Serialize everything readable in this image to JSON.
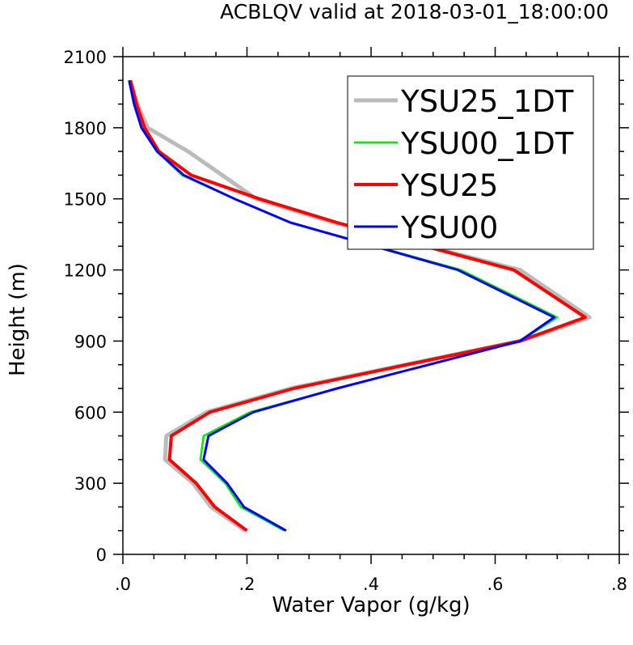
{
  "chart_data": {
    "type": "line",
    "title": "ACBLQV valid at 2018-03-01_18:00:00",
    "xlabel": "Water Vapor (g/kg)",
    "ylabel": "Height (m)",
    "xlim": [
      0,
      0.8
    ],
    "ylim": [
      0,
      2100
    ],
    "xticks": [
      ".0",
      ".2",
      ".4",
      ".6",
      ".8"
    ],
    "yticks": [
      "0",
      "300",
      "600",
      "900",
      "1200",
      "1500",
      "1800",
      "2100"
    ],
    "legend_position": "top-right",
    "series": [
      {
        "name": "YSU25_1DT",
        "color": "#bbbbbb",
        "points": [
          [
            0.197,
            100
          ],
          [
            0.142,
            200
          ],
          [
            0.113,
            300
          ],
          [
            0.068,
            400
          ],
          [
            0.07,
            500
          ],
          [
            0.135,
            600
          ],
          [
            0.27,
            700
          ],
          [
            0.64,
            900
          ],
          [
            0.752,
            1000
          ],
          [
            0.64,
            1200
          ],
          [
            0.34,
            1400
          ],
          [
            0.215,
            1500
          ],
          [
            0.105,
            1700
          ],
          [
            0.04,
            1800
          ],
          [
            0.023,
            1900
          ],
          [
            0.012,
            2000
          ]
        ]
      },
      {
        "name": "YSU00_1DT",
        "color": "#00ee00",
        "points": [
          [
            0.26,
            100
          ],
          [
            0.19,
            200
          ],
          [
            0.165,
            300
          ],
          [
            0.125,
            400
          ],
          [
            0.13,
            500
          ],
          [
            0.205,
            600
          ],
          [
            0.345,
            700
          ],
          [
            0.64,
            900
          ],
          [
            0.7,
            1000
          ],
          [
            0.545,
            1200
          ],
          [
            0.27,
            1400
          ],
          [
            0.18,
            1500
          ],
          [
            0.095,
            1600
          ],
          [
            0.055,
            1700
          ],
          [
            0.03,
            1800
          ],
          [
            0.018,
            1900
          ],
          [
            0.01,
            2000
          ]
        ]
      },
      {
        "name": "YSU25",
        "color": "#ff0000",
        "points": [
          [
            0.2,
            100
          ],
          [
            0.148,
            200
          ],
          [
            0.118,
            300
          ],
          [
            0.075,
            400
          ],
          [
            0.078,
            500
          ],
          [
            0.14,
            600
          ],
          [
            0.275,
            700
          ],
          [
            0.64,
            900
          ],
          [
            0.745,
            1000
          ],
          [
            0.63,
            1200
          ],
          [
            0.345,
            1400
          ],
          [
            0.22,
            1500
          ],
          [
            0.11,
            1600
          ],
          [
            0.058,
            1700
          ],
          [
            0.035,
            1800
          ],
          [
            0.022,
            1900
          ],
          [
            0.012,
            2000
          ]
        ]
      },
      {
        "name": "YSU00",
        "color": "#0000ff",
        "points": [
          [
            0.263,
            100
          ],
          [
            0.195,
            200
          ],
          [
            0.168,
            300
          ],
          [
            0.13,
            400
          ],
          [
            0.138,
            500
          ],
          [
            0.21,
            600
          ],
          [
            0.345,
            700
          ],
          [
            0.64,
            900
          ],
          [
            0.695,
            1000
          ],
          [
            0.54,
            1200
          ],
          [
            0.27,
            1400
          ],
          [
            0.18,
            1500
          ],
          [
            0.098,
            1600
          ],
          [
            0.055,
            1700
          ],
          [
            0.03,
            1800
          ],
          [
            0.018,
            1900
          ],
          [
            0.01,
            2000
          ]
        ]
      }
    ]
  }
}
